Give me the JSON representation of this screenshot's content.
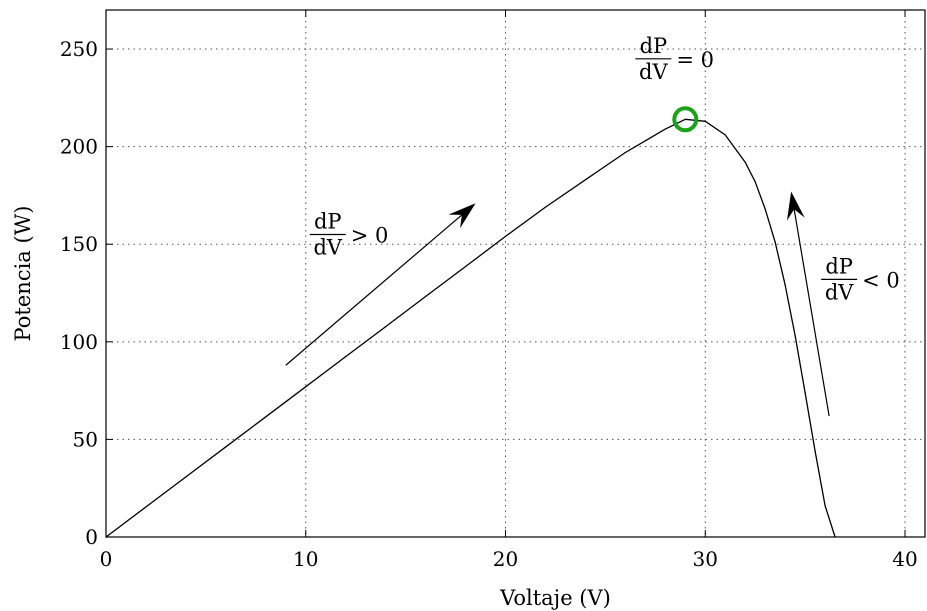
{
  "chart_data": {
    "type": "line",
    "title": "",
    "xlabel": "Voltaje (V)",
    "ylabel": "Potencia (W)",
    "xlim": [
      0,
      41
    ],
    "ylim": [
      0,
      270
    ],
    "xticks": [
      0,
      10,
      20,
      30,
      40
    ],
    "yticks": [
      0,
      50,
      100,
      150,
      200,
      250
    ],
    "grid": true,
    "line_color": "#000000",
    "mpp_marker_color": "#1aa319",
    "series": [
      {
        "x": [
          0,
          2,
          4,
          6,
          8,
          10,
          12,
          14,
          16,
          18,
          20,
          22,
          24,
          25,
          26,
          27,
          28,
          29,
          30,
          31,
          32,
          32.5,
          33,
          33.5,
          34,
          34.5,
          35,
          35.5,
          36,
          36.5
        ],
        "y": [
          0,
          15.4,
          30.8,
          46.2,
          61.6,
          77,
          92.4,
          107.8,
          123.2,
          138.6,
          154,
          169,
          183,
          190,
          197,
          203,
          209,
          214,
          213,
          206,
          192,
          182,
          168,
          151,
          129,
          103,
          74,
          44,
          16,
          0
        ]
      }
    ],
    "mpp": {
      "x": 29,
      "y": 214
    },
    "annotations": [
      {
        "num": "dP",
        "den": "dV",
        "rel": "> 0",
        "at": [
          10.2,
          155
        ]
      },
      {
        "num": "dP",
        "den": "dV",
        "rel": "= 0",
        "at": [
          26.5,
          245
        ]
      },
      {
        "num": "dP",
        "den": "dV",
        "rel": "< 0",
        "at": [
          35.8,
          132
        ]
      }
    ],
    "arrows": [
      {
        "from": [
          9,
          88
        ],
        "to": [
          18.5,
          171
        ]
      },
      {
        "from": [
          36.2,
          62
        ],
        "to": [
          34.3,
          177
        ]
      }
    ]
  }
}
